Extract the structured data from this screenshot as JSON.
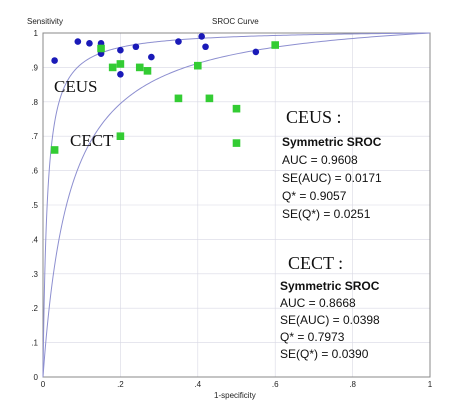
{
  "chart_data": {
    "type": "scatter",
    "title": "SROC Curve",
    "ylabel": "Sensitivity",
    "xlabel": "1-specificity",
    "xlim": [
      0,
      1
    ],
    "ylim": [
      0,
      1
    ],
    "x_ticks": [
      "0",
      ".2",
      ".4",
      ".6",
      ".8",
      "1"
    ],
    "x_tick_values": [
      0,
      0.2,
      0.4,
      0.6,
      0.8,
      1
    ],
    "y_ticks": [
      "0",
      ".1",
      ".2",
      ".3",
      ".4",
      ".5",
      ".6",
      ".7",
      ".8",
      ".9",
      "1"
    ],
    "y_tick_values": [
      0,
      0.1,
      0.2,
      0.3,
      0.4,
      0.5,
      0.6,
      0.7,
      0.8,
      0.9,
      1
    ],
    "grid": true,
    "series": [
      {
        "name": "CEUS",
        "marker": "circle",
        "color": "#1a1ab8",
        "points": [
          {
            "x": 0.03,
            "y": 0.92
          },
          {
            "x": 0.09,
            "y": 0.975
          },
          {
            "x": 0.12,
            "y": 0.97
          },
          {
            "x": 0.15,
            "y": 0.97
          },
          {
            "x": 0.15,
            "y": 0.94
          },
          {
            "x": 0.2,
            "y": 0.95
          },
          {
            "x": 0.2,
            "y": 0.88
          },
          {
            "x": 0.24,
            "y": 0.96
          },
          {
            "x": 0.28,
            "y": 0.93
          },
          {
            "x": 0.35,
            "y": 0.975
          },
          {
            "x": 0.41,
            "y": 0.99
          },
          {
            "x": 0.42,
            "y": 0.96
          },
          {
            "x": 0.55,
            "y": 0.945
          }
        ]
      },
      {
        "name": "CECT",
        "marker": "square",
        "color": "#33cc33",
        "points": [
          {
            "x": 0.03,
            "y": 0.66
          },
          {
            "x": 0.15,
            "y": 0.955
          },
          {
            "x": 0.18,
            "y": 0.9
          },
          {
            "x": 0.2,
            "y": 0.91
          },
          {
            "x": 0.2,
            "y": 0.7
          },
          {
            "x": 0.25,
            "y": 0.9
          },
          {
            "x": 0.27,
            "y": 0.89
          },
          {
            "x": 0.35,
            "y": 0.81
          },
          {
            "x": 0.4,
            "y": 0.905
          },
          {
            "x": 0.43,
            "y": 0.81
          },
          {
            "x": 0.5,
            "y": 0.78
          },
          {
            "x": 0.5,
            "y": 0.68
          },
          {
            "x": 0.6,
            "y": 0.965
          }
        ]
      }
    ],
    "curves": [
      {
        "name": "CEUS",
        "auc": 0.9608
      },
      {
        "name": "CECT",
        "auc": 0.8668
      }
    ],
    "curve_color": "#8d8fd0",
    "annotations": {
      "ceus_label": "CEUS",
      "cect_label": "CECT",
      "ceus_stats": {
        "heading": "CEUS :",
        "subheading": "Symmetric SROC",
        "lines": [
          "AUC = 0.9608",
          "SE(AUC) = 0.0171",
          "Q* = 0.9057",
          "SE(Q*) = 0.0251"
        ]
      },
      "cect_stats": {
        "heading": "CECT :",
        "subheading": "Symmetric SROC",
        "lines": [
          "AUC = 0.8668",
          "SE(AUC) = 0.0398",
          "Q* = 0.7973",
          "SE(Q*) = 0.0390"
        ]
      }
    }
  }
}
